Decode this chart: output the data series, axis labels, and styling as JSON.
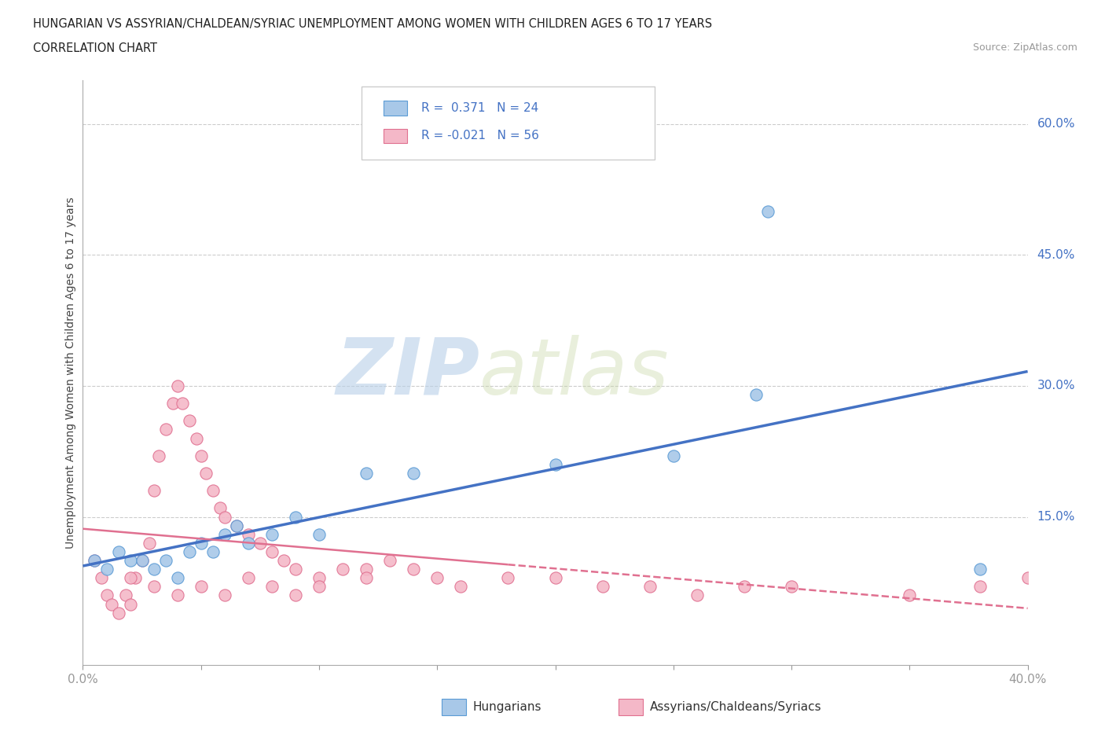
{
  "title_line1": "HUNGARIAN VS ASSYRIAN/CHALDEAN/SYRIAC UNEMPLOYMENT AMONG WOMEN WITH CHILDREN AGES 6 TO 17 YEARS",
  "title_line2": "CORRELATION CHART",
  "source_text": "Source: ZipAtlas.com",
  "ylabel": "Unemployment Among Women with Children Ages 6 to 17 years",
  "xmin": 0.0,
  "xmax": 0.4,
  "ymin": -0.02,
  "ymax": 0.65,
  "ytick_vals": [
    0.0,
    0.15,
    0.3,
    0.45,
    0.6
  ],
  "color_hungarian": "#a8c8e8",
  "color_hungarian_edge": "#5b9bd5",
  "color_assyrian": "#f4b8c8",
  "color_assyrian_edge": "#e07090",
  "color_line_hungarian": "#4472c4",
  "color_line_assyrian": "#e07090",
  "watermark_zip": "ZIP",
  "watermark_atlas": "atlas",
  "hungarian_x": [
    0.005,
    0.01,
    0.015,
    0.02,
    0.025,
    0.03,
    0.035,
    0.04,
    0.045,
    0.05,
    0.055,
    0.06,
    0.065,
    0.07,
    0.08,
    0.09,
    0.1,
    0.12,
    0.14,
    0.2,
    0.25,
    0.285,
    0.29,
    0.38
  ],
  "hungarian_y": [
    0.1,
    0.09,
    0.11,
    0.1,
    0.1,
    0.09,
    0.1,
    0.08,
    0.11,
    0.12,
    0.11,
    0.13,
    0.14,
    0.12,
    0.13,
    0.15,
    0.13,
    0.2,
    0.2,
    0.21,
    0.22,
    0.29,
    0.5,
    0.09
  ],
  "assyrian_x": [
    0.005,
    0.008,
    0.01,
    0.012,
    0.015,
    0.018,
    0.02,
    0.022,
    0.025,
    0.028,
    0.03,
    0.032,
    0.035,
    0.038,
    0.04,
    0.042,
    0.045,
    0.048,
    0.05,
    0.052,
    0.055,
    0.058,
    0.06,
    0.065,
    0.07,
    0.075,
    0.08,
    0.085,
    0.09,
    0.1,
    0.11,
    0.12,
    0.13,
    0.14,
    0.15,
    0.16,
    0.18,
    0.2,
    0.22,
    0.24,
    0.26,
    0.28,
    0.3,
    0.35,
    0.38,
    0.4,
    0.02,
    0.03,
    0.04,
    0.05,
    0.06,
    0.07,
    0.08,
    0.09,
    0.1,
    0.12
  ],
  "assyrian_y": [
    0.1,
    0.08,
    0.06,
    0.05,
    0.04,
    0.06,
    0.05,
    0.08,
    0.1,
    0.12,
    0.18,
    0.22,
    0.25,
    0.28,
    0.3,
    0.28,
    0.26,
    0.24,
    0.22,
    0.2,
    0.18,
    0.16,
    0.15,
    0.14,
    0.13,
    0.12,
    0.11,
    0.1,
    0.09,
    0.08,
    0.09,
    0.09,
    0.1,
    0.09,
    0.08,
    0.07,
    0.08,
    0.08,
    0.07,
    0.07,
    0.06,
    0.07,
    0.07,
    0.06,
    0.07,
    0.08,
    0.08,
    0.07,
    0.06,
    0.07,
    0.06,
    0.08,
    0.07,
    0.06,
    0.07,
    0.08
  ]
}
